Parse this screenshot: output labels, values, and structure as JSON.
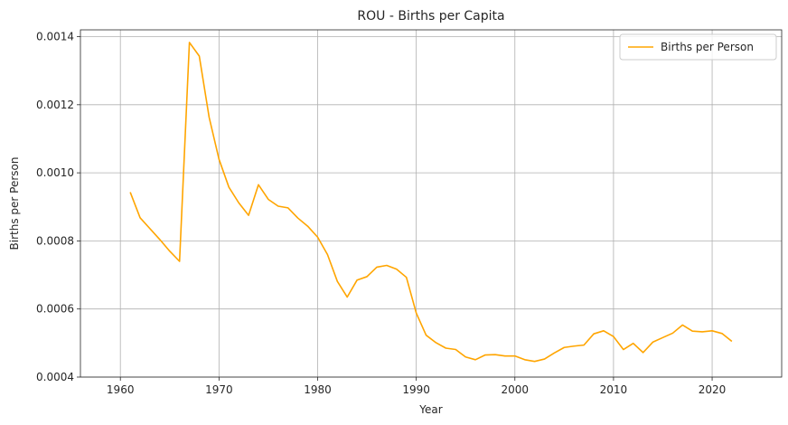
{
  "chart_data": {
    "type": "line",
    "title": "ROU - Births per Capita",
    "xlabel": "Year",
    "ylabel": "Births per Person",
    "xlim": [
      1955.95,
      2027.05
    ],
    "ylim": [
      0.0004,
      0.00142
    ],
    "xticks": [
      1960,
      1970,
      1980,
      1990,
      2000,
      2010,
      2020
    ],
    "yticks": [
      0.0004,
      0.0006,
      0.0008,
      0.001,
      0.0012,
      0.0014
    ],
    "ytick_labels": [
      "0.0004",
      "0.0006",
      "0.0008",
      "0.0010",
      "0.0012",
      "0.0014"
    ],
    "grid": true,
    "legend_position": "top-right",
    "series": [
      {
        "name": "Births per Person",
        "color": "#FFA500",
        "x": [
          1961,
          1962,
          1963,
          1964,
          1965,
          1966,
          1967,
          1968,
          1969,
          1970,
          1971,
          1972,
          1973,
          1974,
          1975,
          1976,
          1977,
          1978,
          1979,
          1980,
          1981,
          1982,
          1983,
          1984,
          1985,
          1986,
          1987,
          1988,
          1989,
          1990,
          1991,
          1992,
          1993,
          1994,
          1995,
          1996,
          1997,
          1998,
          1999,
          2000,
          2001,
          2002,
          2003,
          2004,
          2005,
          2006,
          2007,
          2008,
          2009,
          2010,
          2011,
          2012,
          2013,
          2014,
          2015,
          2016,
          2017,
          2018,
          2019,
          2020,
          2021,
          2022
        ],
        "y": [
          0.000943,
          0.000868,
          0.000836,
          0.000804,
          0.00077,
          0.00074,
          0.001383,
          0.001343,
          0.001163,
          0.00104,
          0.000958,
          0.000912,
          0.000875,
          0.000965,
          0.000922,
          0.000902,
          0.000897,
          0.000867,
          0.000843,
          0.000811,
          0.00076,
          0.000681,
          0.000635,
          0.000685,
          0.000695,
          0.000723,
          0.000728,
          0.000717,
          0.000693,
          0.000588,
          0.000523,
          0.000501,
          0.000485,
          0.000481,
          0.000459,
          0.000451,
          0.000465,
          0.000466,
          0.000462,
          0.000462,
          0.000451,
          0.000446,
          0.000453,
          0.000471,
          0.000487,
          0.000491,
          0.000494,
          0.000527,
          0.000536,
          0.000519,
          0.000481,
          0.000499,
          0.000472,
          0.000503,
          0.000516,
          0.000529,
          0.000553,
          0.000535,
          0.000533,
          0.000536,
          0.000528,
          0.000505
        ]
      }
    ]
  }
}
